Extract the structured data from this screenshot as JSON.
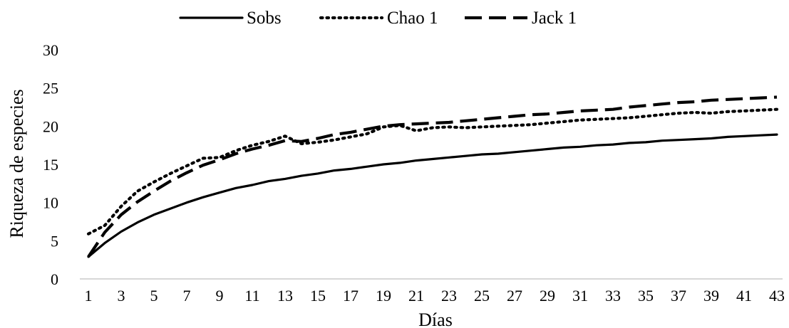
{
  "chart_data": {
    "type": "line",
    "title": "",
    "xlabel": "Días",
    "ylabel": "Riqueza de especies",
    "ylim": [
      0,
      30
    ],
    "yticks": [
      0,
      5,
      10,
      15,
      20,
      25,
      30
    ],
    "xlim": [
      1,
      43
    ],
    "xticks": [
      1,
      3,
      5,
      7,
      9,
      11,
      13,
      15,
      17,
      19,
      21,
      23,
      25,
      27,
      29,
      31,
      33,
      35,
      37,
      39,
      41,
      43
    ],
    "grid": false,
    "legend_position": "top-center",
    "x": [
      1,
      2,
      3,
      4,
      5,
      6,
      7,
      8,
      9,
      10,
      11,
      12,
      13,
      14,
      15,
      16,
      17,
      18,
      19,
      20,
      21,
      22,
      23,
      24,
      25,
      26,
      27,
      28,
      29,
      30,
      31,
      32,
      33,
      34,
      35,
      36,
      37,
      38,
      39,
      40,
      41,
      42,
      43
    ],
    "series": [
      {
        "name": "Sobs",
        "style": "solid",
        "values": [
          2.9,
          4.7,
          6.2,
          7.4,
          8.4,
          9.2,
          10.0,
          10.7,
          11.3,
          11.9,
          12.3,
          12.8,
          13.1,
          13.5,
          13.8,
          14.2,
          14.4,
          14.7,
          15.0,
          15.2,
          15.5,
          15.7,
          15.9,
          16.1,
          16.3,
          16.4,
          16.6,
          16.8,
          17.0,
          17.2,
          17.3,
          17.5,
          17.6,
          17.8,
          17.9,
          18.1,
          18.2,
          18.3,
          18.4,
          18.6,
          18.7,
          18.8,
          18.9
        ]
      },
      {
        "name": "Chao 1",
        "style": "dotted",
        "values": [
          5.9,
          7.0,
          9.5,
          11.5,
          12.7,
          13.8,
          14.8,
          15.8,
          15.9,
          16.8,
          17.5,
          18.0,
          18.7,
          17.7,
          17.9,
          18.2,
          18.6,
          19.0,
          19.9,
          20.1,
          19.4,
          19.8,
          19.9,
          19.8,
          19.9,
          20.0,
          20.1,
          20.2,
          20.4,
          20.6,
          20.8,
          20.9,
          21.0,
          21.1,
          21.3,
          21.5,
          21.7,
          21.8,
          21.7,
          21.9,
          22.0,
          22.1,
          22.2
        ]
      },
      {
        "name": "Jack 1",
        "style": "dashed",
        "values": [
          2.9,
          6.1,
          8.4,
          10.1,
          11.5,
          12.8,
          13.9,
          14.9,
          15.6,
          16.4,
          17.0,
          17.5,
          18.1,
          18.0,
          18.4,
          18.9,
          19.2,
          19.6,
          20.0,
          20.2,
          20.3,
          20.4,
          20.5,
          20.7,
          20.9,
          21.1,
          21.3,
          21.5,
          21.6,
          21.8,
          22.0,
          22.1,
          22.2,
          22.5,
          22.7,
          22.9,
          23.1,
          23.2,
          23.4,
          23.5,
          23.6,
          23.7,
          23.8
        ]
      }
    ]
  }
}
